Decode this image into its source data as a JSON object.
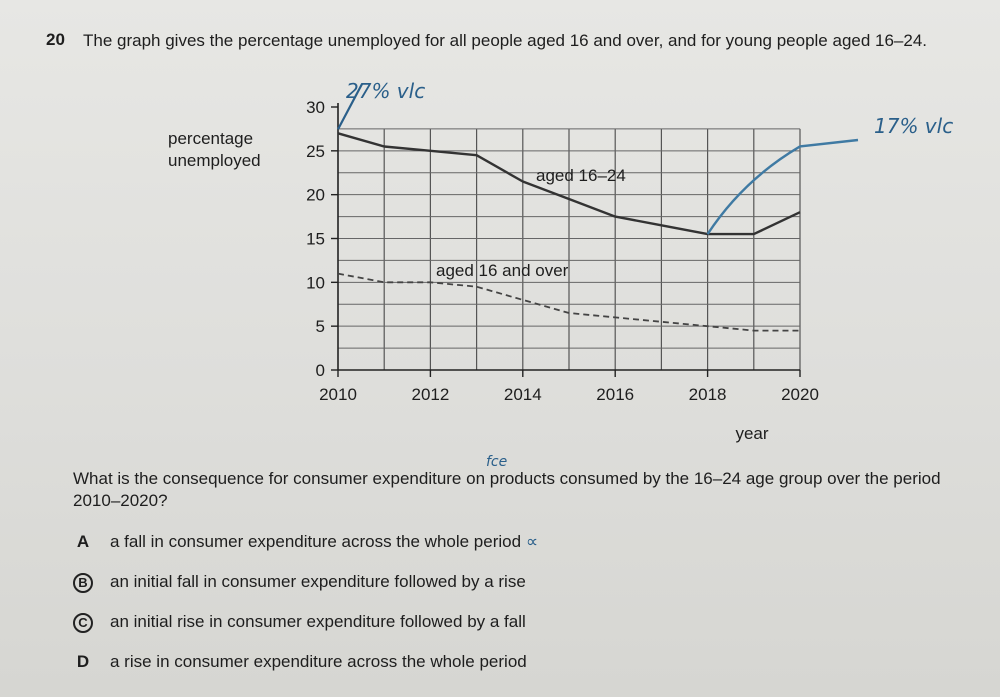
{
  "question": {
    "number": "20",
    "text": "The graph gives the percentage unemployed for all people aged 16 and over, and for young people aged 16–24."
  },
  "chart_data": {
    "type": "line",
    "ylabel": "percentage unemployed",
    "xlabel": "year",
    "x_ticks": [
      "2010",
      "2012",
      "2014",
      "2016",
      "2018",
      "2020"
    ],
    "y_ticks": [
      "0",
      "5",
      "10",
      "15",
      "20",
      "25",
      "30"
    ],
    "xlim": [
      2010,
      2020
    ],
    "ylim": [
      0,
      30
    ],
    "grid": true,
    "series": [
      {
        "name": "aged 16–24",
        "style": "solid",
        "color": "#333333",
        "x": [
          2010,
          2011,
          2012,
          2013,
          2014,
          2015,
          2016,
          2017,
          2018,
          2019,
          2020
        ],
        "y": [
          27,
          25.5,
          25,
          24.5,
          21.5,
          19.5,
          17.5,
          16.5,
          15.5,
          15.5,
          18
        ]
      },
      {
        "name": "aged 16 and over",
        "style": "dashed",
        "color": "#444444",
        "x": [
          2010,
          2011,
          2012,
          2013,
          2014,
          2015,
          2016,
          2017,
          2018,
          2019,
          2020
        ],
        "y": [
          11,
          10,
          10,
          9.5,
          8,
          6.5,
          6,
          5.5,
          5,
          4.5,
          4.5
        ]
      }
    ]
  },
  "annotations": {
    "handwritten_top": "27% vlc",
    "handwritten_right": "17% vlc",
    "handwritten_above_prompt": "fce",
    "handwritten_after_a": "∝"
  },
  "prompt": "What is the consequence for consumer expenditure on products consumed by the 16–24 age group over the period 2010–2020?",
  "options": [
    {
      "letter": "A",
      "text": "a fall in consumer expenditure across the whole period",
      "circled": false
    },
    {
      "letter": "B",
      "text": "an initial fall in consumer expenditure followed by a rise",
      "circled": true
    },
    {
      "letter": "C",
      "text": "an initial rise in consumer expenditure followed by a fall",
      "circled": true
    },
    {
      "letter": "D",
      "text": "a rise in consumer expenditure across the whole period",
      "circled": false
    }
  ],
  "colors": {
    "ink": "#1e1e1e",
    "pen": "#2a5f8a"
  }
}
